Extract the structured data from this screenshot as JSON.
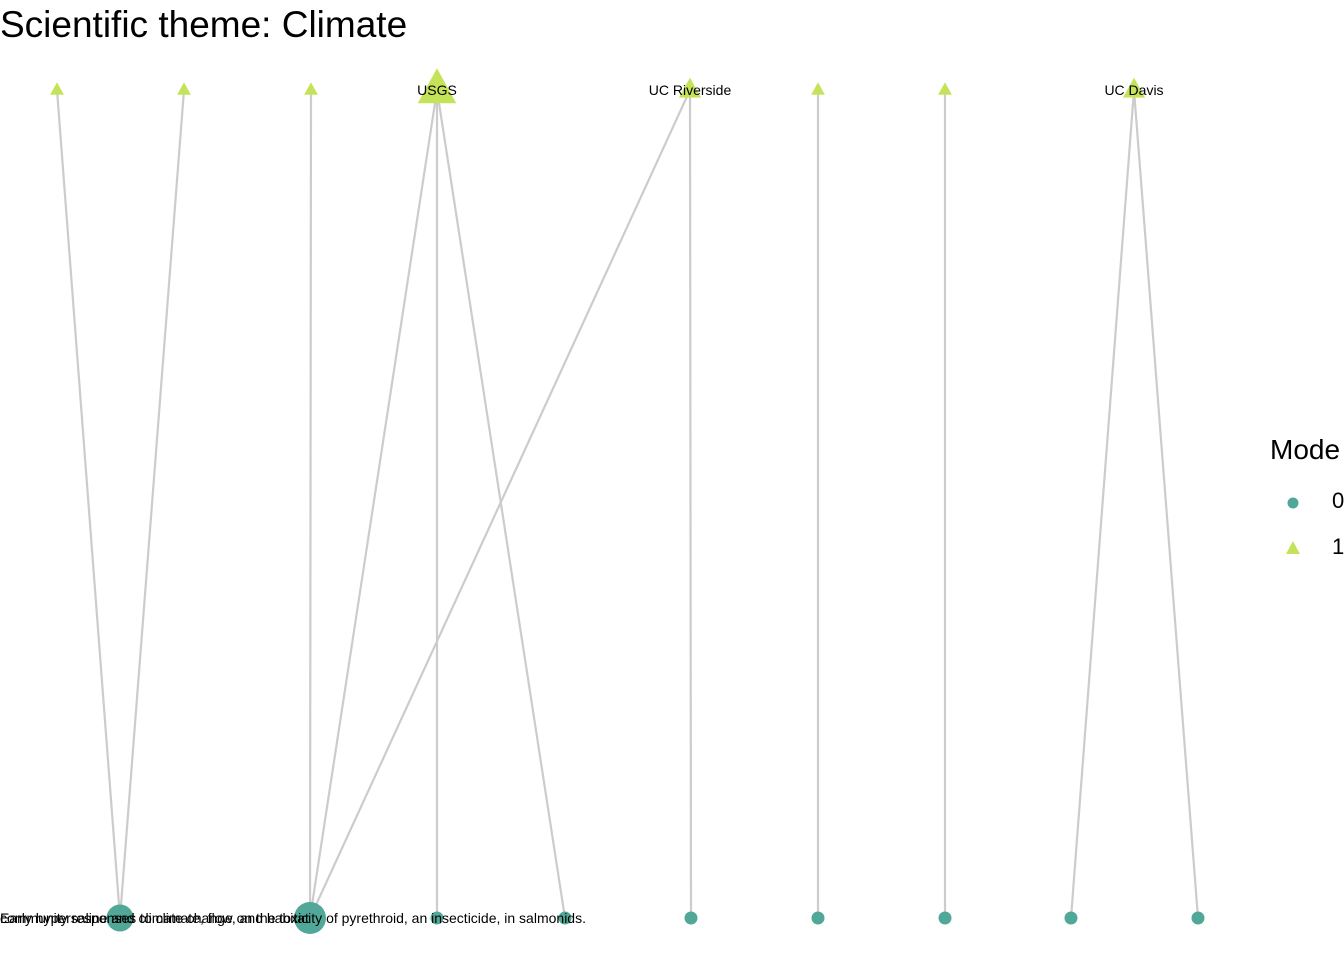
{
  "title": "Scientific theme: Climate",
  "colors": {
    "mode0": "#52a898",
    "mode1": "#c5e35a",
    "edge": "#cccccc"
  },
  "legend": {
    "title": "Mode",
    "items": [
      {
        "label": "0",
        "shape": "circle"
      },
      {
        "label": "1",
        "shape": "triangle"
      }
    ]
  },
  "diagram": {
    "nodes": [
      {
        "id": "a1",
        "mode": 1,
        "label": "",
        "size": 1
      },
      {
        "id": "a2",
        "mode": 1,
        "label": "",
        "size": 1
      },
      {
        "id": "a3",
        "mode": 1,
        "label": "",
        "size": 1
      },
      {
        "id": "usgs",
        "mode": 1,
        "label": "USGS",
        "size": 4
      },
      {
        "id": "ucr",
        "mode": 1,
        "label": "UC Riverside",
        "size": 2
      },
      {
        "id": "a6",
        "mode": 1,
        "label": "",
        "size": 1
      },
      {
        "id": "a7",
        "mode": 1,
        "label": "",
        "size": 1
      },
      {
        "id": "ucd",
        "mode": 1,
        "label": "UC Davis",
        "size": 2
      },
      {
        "id": "b1",
        "mode": 0,
        "label": "community responses to climate, flow, and habitat",
        "size": 2
      },
      {
        "id": "b2",
        "mode": 0,
        "label": "Early hypersaline and climate change on the toxicity of pyrethroid, an insecticide, in salmonids.",
        "size": 4
      },
      {
        "id": "b3",
        "mode": 0,
        "label": "",
        "size": 1
      },
      {
        "id": "b4",
        "mode": 0,
        "label": "",
        "size": 1
      },
      {
        "id": "b5",
        "mode": 0,
        "label": "",
        "size": 1
      },
      {
        "id": "b6",
        "mode": 0,
        "label": "",
        "size": 1
      },
      {
        "id": "b7",
        "mode": 0,
        "label": "",
        "size": 1
      },
      {
        "id": "b8",
        "mode": 0,
        "label": "",
        "size": 1
      },
      {
        "id": "b9",
        "mode": 0,
        "label": "",
        "size": 1
      }
    ],
    "edges": [
      [
        "b1",
        "a1"
      ],
      [
        "b1",
        "a2"
      ],
      [
        "b2",
        "a3"
      ],
      [
        "b2",
        "usgs"
      ],
      [
        "b2",
        "ucr"
      ],
      [
        "b3",
        "usgs"
      ],
      [
        "b4",
        "usgs"
      ],
      [
        "b5",
        "ucr"
      ],
      [
        "b6",
        "a6"
      ],
      [
        "b7",
        "a7"
      ],
      [
        "b8",
        "ucd"
      ],
      [
        "b9",
        "ucd"
      ]
    ]
  }
}
